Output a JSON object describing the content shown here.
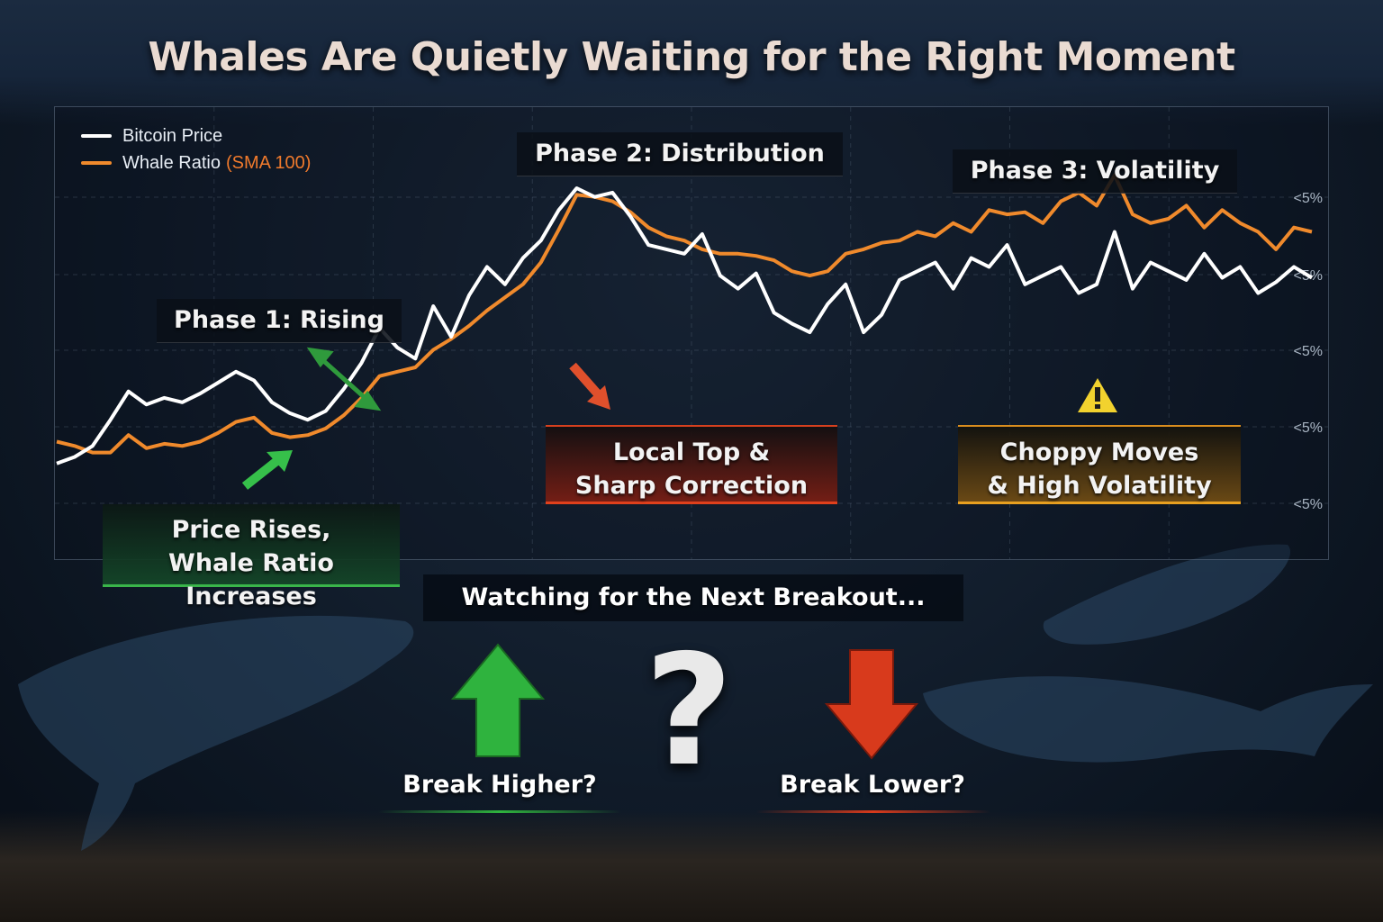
{
  "title": "Whales Are Quietly Waiting for the Right Moment",
  "legend": {
    "price_label": "Bitcoin Price",
    "whale_label": "Whale Ratio",
    "whale_suffix": "(SMA 100)",
    "price_color": "#ffffff",
    "whale_color": "#f08a2c"
  },
  "phases": {
    "phase1": "Phase 1: Rising",
    "phase2": "Phase 2: Distribution",
    "phase3": "Phase 3: Volatility"
  },
  "callouts": {
    "green_line1": "Price Rises,",
    "green_line2": "Whale Ratio Increases",
    "red_line1": "Local Top &",
    "red_line2": "Sharp Correction",
    "amber_line1": "Choppy Moves",
    "amber_line2": "& High Volatility"
  },
  "bottom": {
    "watching": "Watching for the Next Breakout...",
    "question": "?",
    "break_higher": "Break Higher?",
    "break_lower": "Break Lower?"
  },
  "icons": [
    "arrow-up-right-icon",
    "double-arrow-icon",
    "arrow-down-right-icon",
    "warning-icon",
    "up-arrow-icon",
    "down-arrow-icon",
    "whale-icon"
  ],
  "chart_data": {
    "type": "line",
    "x": [
      0,
      1,
      2,
      3,
      4,
      5,
      6,
      7,
      8,
      9,
      10,
      11,
      12,
      13,
      14,
      15,
      16,
      17,
      18,
      19,
      20,
      21,
      22,
      23,
      24,
      25,
      26,
      27,
      28,
      29,
      30,
      31,
      32,
      33,
      34,
      35,
      36,
      37,
      38,
      39,
      40,
      41,
      42,
      43,
      44,
      45,
      46,
      47,
      48,
      49,
      50,
      51,
      52,
      53,
      54,
      55,
      56,
      57,
      58,
      59,
      60,
      61,
      62,
      63,
      64,
      65,
      66,
      67,
      68,
      69,
      70
    ],
    "yticks": [
      "<5%",
      "<5%",
      "<5%",
      "<5%",
      "<5%"
    ],
    "series": [
      {
        "name": "Bitcoin Price",
        "values": [
          10,
          13,
          18,
          30,
          43,
          37,
          40,
          38,
          42,
          47,
          52,
          48,
          38,
          33,
          30,
          34,
          44,
          56,
          72,
          63,
          58,
          82,
          68,
          87,
          100,
          92,
          104,
          112,
          126,
          136,
          132,
          134,
          123,
          110,
          108,
          106,
          115,
          96,
          90,
          97,
          79,
          74,
          70,
          83,
          92,
          70,
          78,
          94,
          98,
          102,
          90,
          104,
          100,
          110,
          92,
          96,
          100,
          88,
          92,
          116,
          90,
          102,
          98,
          94,
          106,
          95,
          100,
          88,
          93,
          100,
          95
        ]
      },
      {
        "name": "Whale Ratio (SMA 100)",
        "values": [
          20,
          18,
          15,
          15,
          23,
          17,
          19,
          18,
          20,
          24,
          29,
          31,
          24,
          22,
          23,
          26,
          32,
          40,
          50,
          52,
          54,
          62,
          67,
          73,
          80,
          86,
          92,
          102,
          117,
          133,
          132,
          130,
          125,
          118,
          114,
          112,
          108,
          106,
          106,
          105,
          103,
          98,
          96,
          98,
          106,
          108,
          111,
          112,
          116,
          114,
          120,
          116,
          126,
          124,
          125,
          120,
          130,
          134,
          128,
          142,
          124,
          120,
          122,
          128,
          118,
          126,
          120,
          116,
          108,
          118,
          116
        ]
      }
    ]
  }
}
